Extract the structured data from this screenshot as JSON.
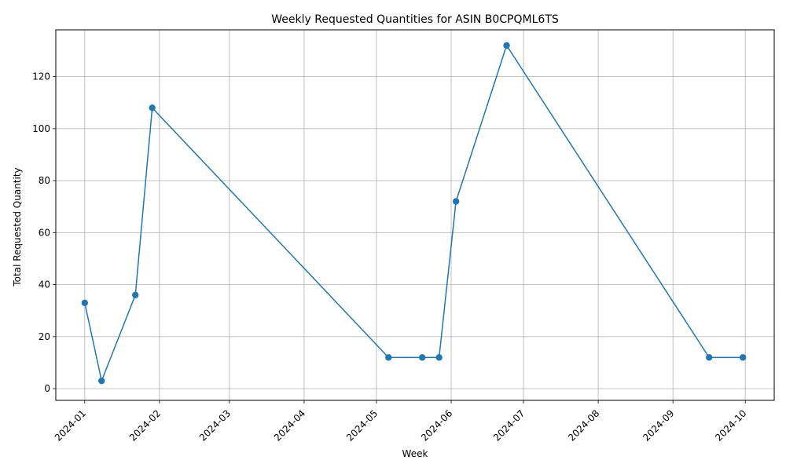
{
  "chart_data": {
    "type": "line",
    "title": "Weekly Requested Quantities for ASIN B0CPQML6TS",
    "xlabel": "Week",
    "ylabel": "Total Requested Quantity",
    "x_ticks": [
      "2024-01",
      "2024-02",
      "2024-03",
      "2024-04",
      "2024-05",
      "2024-06",
      "2024-07",
      "2024-08",
      "2024-09",
      "2024-10"
    ],
    "y_ticks": [
      "0",
      "20",
      "40",
      "60",
      "80",
      "100",
      "120"
    ],
    "ylim": [
      -4.5,
      138
    ],
    "xlim": [
      "2023-12-20",
      "2024-10-13"
    ],
    "grid": true,
    "series": [
      {
        "color": "#1f77b4",
        "marker": "circle",
        "points": [
          {
            "x": "2024-01-01",
            "y": 33
          },
          {
            "x": "2024-01-08",
            "y": 3
          },
          {
            "x": "2024-01-22",
            "y": 36
          },
          {
            "x": "2024-01-29",
            "y": 108
          },
          {
            "x": "2024-05-06",
            "y": 12
          },
          {
            "x": "2024-05-20",
            "y": 12
          },
          {
            "x": "2024-05-27",
            "y": 12
          },
          {
            "x": "2024-06-03",
            "y": 72
          },
          {
            "x": "2024-06-24",
            "y": 132
          },
          {
            "x": "2024-09-16",
            "y": 12
          },
          {
            "x": "2024-09-30",
            "y": 12
          }
        ]
      }
    ]
  }
}
